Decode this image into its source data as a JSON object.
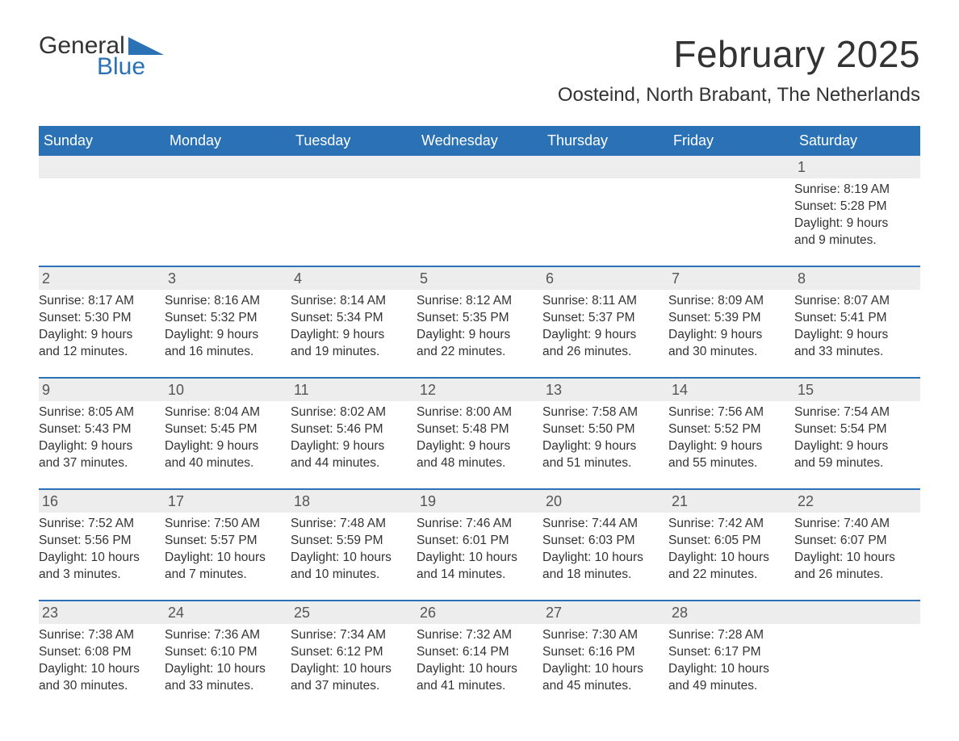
{
  "logo": {
    "word1": "General",
    "word2": "Blue",
    "accent_color": "#2a72b5"
  },
  "title": "February 2025",
  "subtitle": "Oosteind, North Brabant, The Netherlands",
  "colors": {
    "header_bg": "#2a72b5",
    "header_text": "#ffffff",
    "daynum_bg": "#ededed",
    "text": "#333333",
    "rule": "#2a72b5",
    "page_bg": "#ffffff"
  },
  "typography": {
    "title_fontsize": 46,
    "subtitle_fontsize": 24,
    "dow_fontsize": 18,
    "daynum_fontsize": 18,
    "body_fontsize": 15.5,
    "font_family": "Arial"
  },
  "days_of_week": [
    "Sunday",
    "Monday",
    "Tuesday",
    "Wednesday",
    "Thursday",
    "Friday",
    "Saturday"
  ],
  "weeks": [
    [
      null,
      null,
      null,
      null,
      null,
      null,
      {
        "n": "1",
        "sunrise": "Sunrise: 8:19 AM",
        "sunset": "Sunset: 5:28 PM",
        "day1": "Daylight: 9 hours",
        "day2": "and 9 minutes."
      }
    ],
    [
      {
        "n": "2",
        "sunrise": "Sunrise: 8:17 AM",
        "sunset": "Sunset: 5:30 PM",
        "day1": "Daylight: 9 hours",
        "day2": "and 12 minutes."
      },
      {
        "n": "3",
        "sunrise": "Sunrise: 8:16 AM",
        "sunset": "Sunset: 5:32 PM",
        "day1": "Daylight: 9 hours",
        "day2": "and 16 minutes."
      },
      {
        "n": "4",
        "sunrise": "Sunrise: 8:14 AM",
        "sunset": "Sunset: 5:34 PM",
        "day1": "Daylight: 9 hours",
        "day2": "and 19 minutes."
      },
      {
        "n": "5",
        "sunrise": "Sunrise: 8:12 AM",
        "sunset": "Sunset: 5:35 PM",
        "day1": "Daylight: 9 hours",
        "day2": "and 22 minutes."
      },
      {
        "n": "6",
        "sunrise": "Sunrise: 8:11 AM",
        "sunset": "Sunset: 5:37 PM",
        "day1": "Daylight: 9 hours",
        "day2": "and 26 minutes."
      },
      {
        "n": "7",
        "sunrise": "Sunrise: 8:09 AM",
        "sunset": "Sunset: 5:39 PM",
        "day1": "Daylight: 9 hours",
        "day2": "and 30 minutes."
      },
      {
        "n": "8",
        "sunrise": "Sunrise: 8:07 AM",
        "sunset": "Sunset: 5:41 PM",
        "day1": "Daylight: 9 hours",
        "day2": "and 33 minutes."
      }
    ],
    [
      {
        "n": "9",
        "sunrise": "Sunrise: 8:05 AM",
        "sunset": "Sunset: 5:43 PM",
        "day1": "Daylight: 9 hours",
        "day2": "and 37 minutes."
      },
      {
        "n": "10",
        "sunrise": "Sunrise: 8:04 AM",
        "sunset": "Sunset: 5:45 PM",
        "day1": "Daylight: 9 hours",
        "day2": "and 40 minutes."
      },
      {
        "n": "11",
        "sunrise": "Sunrise: 8:02 AM",
        "sunset": "Sunset: 5:46 PM",
        "day1": "Daylight: 9 hours",
        "day2": "and 44 minutes."
      },
      {
        "n": "12",
        "sunrise": "Sunrise: 8:00 AM",
        "sunset": "Sunset: 5:48 PM",
        "day1": "Daylight: 9 hours",
        "day2": "and 48 minutes."
      },
      {
        "n": "13",
        "sunrise": "Sunrise: 7:58 AM",
        "sunset": "Sunset: 5:50 PM",
        "day1": "Daylight: 9 hours",
        "day2": "and 51 minutes."
      },
      {
        "n": "14",
        "sunrise": "Sunrise: 7:56 AM",
        "sunset": "Sunset: 5:52 PM",
        "day1": "Daylight: 9 hours",
        "day2": "and 55 minutes."
      },
      {
        "n": "15",
        "sunrise": "Sunrise: 7:54 AM",
        "sunset": "Sunset: 5:54 PM",
        "day1": "Daylight: 9 hours",
        "day2": "and 59 minutes."
      }
    ],
    [
      {
        "n": "16",
        "sunrise": "Sunrise: 7:52 AM",
        "sunset": "Sunset: 5:56 PM",
        "day1": "Daylight: 10 hours",
        "day2": "and 3 minutes."
      },
      {
        "n": "17",
        "sunrise": "Sunrise: 7:50 AM",
        "sunset": "Sunset: 5:57 PM",
        "day1": "Daylight: 10 hours",
        "day2": "and 7 minutes."
      },
      {
        "n": "18",
        "sunrise": "Sunrise: 7:48 AM",
        "sunset": "Sunset: 5:59 PM",
        "day1": "Daylight: 10 hours",
        "day2": "and 10 minutes."
      },
      {
        "n": "19",
        "sunrise": "Sunrise: 7:46 AM",
        "sunset": "Sunset: 6:01 PM",
        "day1": "Daylight: 10 hours",
        "day2": "and 14 minutes."
      },
      {
        "n": "20",
        "sunrise": "Sunrise: 7:44 AM",
        "sunset": "Sunset: 6:03 PM",
        "day1": "Daylight: 10 hours",
        "day2": "and 18 minutes."
      },
      {
        "n": "21",
        "sunrise": "Sunrise: 7:42 AM",
        "sunset": "Sunset: 6:05 PM",
        "day1": "Daylight: 10 hours",
        "day2": "and 22 minutes."
      },
      {
        "n": "22",
        "sunrise": "Sunrise: 7:40 AM",
        "sunset": "Sunset: 6:07 PM",
        "day1": "Daylight: 10 hours",
        "day2": "and 26 minutes."
      }
    ],
    [
      {
        "n": "23",
        "sunrise": "Sunrise: 7:38 AM",
        "sunset": "Sunset: 6:08 PM",
        "day1": "Daylight: 10 hours",
        "day2": "and 30 minutes."
      },
      {
        "n": "24",
        "sunrise": "Sunrise: 7:36 AM",
        "sunset": "Sunset: 6:10 PM",
        "day1": "Daylight: 10 hours",
        "day2": "and 33 minutes."
      },
      {
        "n": "25",
        "sunrise": "Sunrise: 7:34 AM",
        "sunset": "Sunset: 6:12 PM",
        "day1": "Daylight: 10 hours",
        "day2": "and 37 minutes."
      },
      {
        "n": "26",
        "sunrise": "Sunrise: 7:32 AM",
        "sunset": "Sunset: 6:14 PM",
        "day1": "Daylight: 10 hours",
        "day2": "and 41 minutes."
      },
      {
        "n": "27",
        "sunrise": "Sunrise: 7:30 AM",
        "sunset": "Sunset: 6:16 PM",
        "day1": "Daylight: 10 hours",
        "day2": "and 45 minutes."
      },
      {
        "n": "28",
        "sunrise": "Sunrise: 7:28 AM",
        "sunset": "Sunset: 6:17 PM",
        "day1": "Daylight: 10 hours",
        "day2": "and 49 minutes."
      },
      null
    ]
  ]
}
